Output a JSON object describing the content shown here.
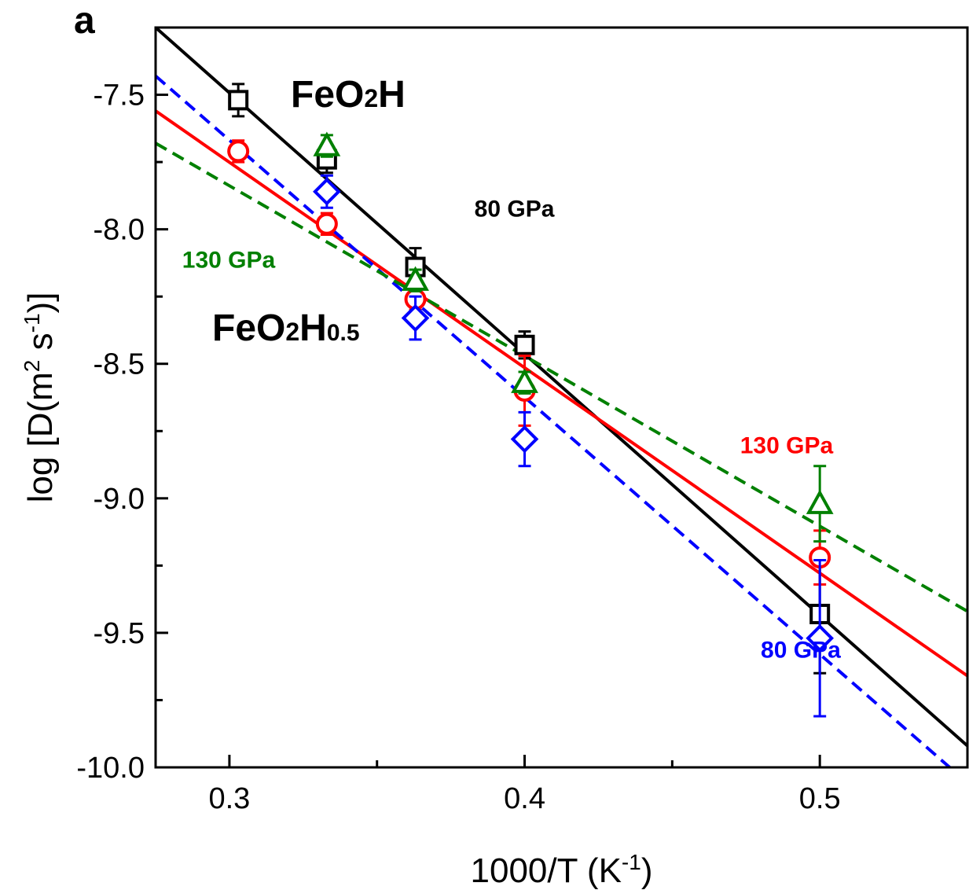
{
  "chart_data": {
    "type": "scatter",
    "panel_label": "a",
    "xlabel": {
      "base": "1000/T (K",
      "sup": "-1",
      "close": ")"
    },
    "ylabel": {
      "prefix": "log [D(m",
      "sup1": "2",
      "mid": " s",
      "sup2": "-1",
      "close": ")]"
    },
    "xlim": [
      0.275,
      0.55
    ],
    "ylim": [
      -10.0,
      -7.25
    ],
    "xticks": [
      0.3,
      0.4,
      0.5
    ],
    "xtick_labels": [
      "0.3",
      "0.4",
      "0.5"
    ],
    "xminor": [
      0.35,
      0.45
    ],
    "yticks": [
      -7.5,
      -8.0,
      -8.5,
      -9.0,
      -9.5,
      -10.0
    ],
    "ytick_labels": [
      "-7.5",
      "-8.0",
      "-8.5",
      "-9.0",
      "-9.5",
      "-10.0"
    ],
    "yminor": [
      -7.25,
      -7.75,
      -8.25,
      -8.75,
      -9.25,
      -9.75
    ],
    "grid": false,
    "legend": "none",
    "compound_labels": [
      {
        "text": "FeO",
        "sub1": "2",
        "tail": "H",
        "sub2": ""
      },
      {
        "text": "FeO",
        "sub1": "2",
        "tail": "H",
        "sub2": "0.5"
      }
    ],
    "series": [
      {
        "compound": "FeO2H",
        "pressure": "80 GPa",
        "color": "#000000",
        "marker": "square",
        "line": "solid",
        "points": [
          {
            "x": 0.303,
            "y": -7.52,
            "err": 0.06
          },
          {
            "x": 0.333,
            "y": -7.74,
            "err": 0.05
          },
          {
            "x": 0.363,
            "y": -8.14,
            "err": 0.07
          },
          {
            "x": 0.4,
            "y": -8.43,
            "err": 0.05
          },
          {
            "x": 0.5,
            "y": -9.43,
            "err": 0.22
          }
        ],
        "fit": {
          "x": [
            0.275,
            0.55
          ],
          "y": [
            -7.25,
            -9.92
          ]
        }
      },
      {
        "compound": "FeO2H",
        "pressure": "130 GPa",
        "color": "#ff0000",
        "marker": "circle",
        "line": "solid",
        "points": [
          {
            "x": 0.303,
            "y": -7.71,
            "err": 0.04
          },
          {
            "x": 0.333,
            "y": -7.98,
            "err": 0.04
          },
          {
            "x": 0.363,
            "y": -8.26,
            "err": 0.04
          },
          {
            "x": 0.4,
            "y": -8.6,
            "err": 0.13
          },
          {
            "x": 0.5,
            "y": -9.22,
            "err": 0.1
          }
        ],
        "fit": {
          "x": [
            0.275,
            0.55
          ],
          "y": [
            -7.56,
            -9.66
          ]
        }
      },
      {
        "compound": "FeO2H0.5",
        "pressure": "80 GPa",
        "color": "#0000ff",
        "marker": "diamond",
        "line": "dashed",
        "points": [
          {
            "x": 0.333,
            "y": -7.86,
            "err": 0.06
          },
          {
            "x": 0.363,
            "y": -8.33,
            "err": 0.08
          },
          {
            "x": 0.4,
            "y": -8.78,
            "err": 0.1
          },
          {
            "x": 0.5,
            "y": -9.52,
            "err": 0.29
          }
        ],
        "fit": {
          "x": [
            0.275,
            0.544
          ],
          "y": [
            -7.43,
            -10.0
          ]
        }
      },
      {
        "compound": "FeO2H0.5",
        "pressure": "130 GPa",
        "color": "#008000",
        "marker": "triangle",
        "line": "dashed",
        "points": [
          {
            "x": 0.333,
            "y": -7.69,
            "err": 0.04
          },
          {
            "x": 0.363,
            "y": -8.19,
            "err": 0.04
          },
          {
            "x": 0.4,
            "y": -8.57,
            "err": 0.04
          },
          {
            "x": 0.5,
            "y": -9.02,
            "err": 0.14
          }
        ],
        "fit": {
          "x": [
            0.275,
            0.55
          ],
          "y": [
            -7.68,
            -9.42
          ]
        }
      }
    ],
    "annotations": [
      {
        "text": "80 GPa",
        "color": "#000000",
        "x": 0.383,
        "y": -7.92
      },
      {
        "text": "130 GPa",
        "color": "#008000",
        "x": 0.284,
        "y": -8.11
      },
      {
        "text": "130 GPa",
        "color": "#ff0000",
        "x": 0.473,
        "y": -8.8
      },
      {
        "text": "80 GPa",
        "color": "#0000ff",
        "x": 0.48,
        "y": -9.56
      }
    ]
  }
}
